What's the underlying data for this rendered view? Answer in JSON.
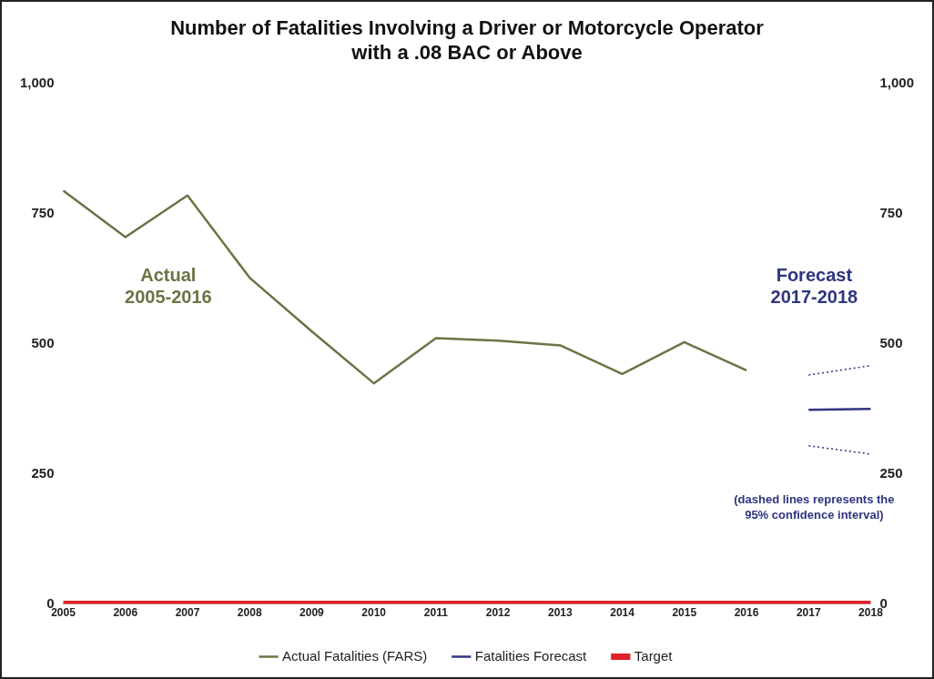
{
  "chart_data": {
    "type": "line",
    "title": "Number of Fatalities Involving a Driver or Motorcycle Operator\nwith a .08 BAC or Above",
    "categories": [
      "2005",
      "2006",
      "2007",
      "2008",
      "2009",
      "2010",
      "2011",
      "2012",
      "2013",
      "2014",
      "2015",
      "2016",
      "2017",
      "2018"
    ],
    "series": [
      {
        "name": "Actual Fatalities (FARS)",
        "color": "#6b7445",
        "values": [
          794,
          705,
          785,
          627,
          524,
          424,
          511,
          506,
          497,
          442,
          503,
          449,
          null,
          null
        ]
      },
      {
        "name": "Fatalities Forecast",
        "color": "#2e3580",
        "values": [
          null,
          null,
          null,
          null,
          null,
          null,
          null,
          null,
          null,
          null,
          null,
          null,
          373,
          375
        ]
      },
      {
        "color": "#2e3580",
        "line_style": "dotted",
        "values": [
          null,
          null,
          null,
          null,
          null,
          null,
          null,
          null,
          null,
          null,
          null,
          null,
          440,
          458
        ]
      },
      {
        "color": "#2e3580",
        "line_style": "dotted",
        "values": [
          null,
          null,
          null,
          null,
          null,
          null,
          null,
          null,
          null,
          null,
          null,
          null,
          304,
          288
        ]
      },
      {
        "name": "Target",
        "color": "#e0202a",
        "values": [
          0,
          0,
          0,
          0,
          0,
          0,
          0,
          0,
          0,
          0,
          0,
          0,
          0,
          0
        ]
      }
    ],
    "ylim": [
      0,
      1000
    ],
    "yticks": [
      0,
      250,
      500,
      750,
      {
        "value": 1000,
        "label": "1,000"
      }
    ],
    "y2lim": [
      0,
      1000
    ],
    "y2ticks": [
      0,
      250,
      500,
      750,
      {
        "value": 1000,
        "label": "1,000"
      }
    ],
    "annotations": [
      "Actual\n2005-2016",
      "Forecast\n2017-2018",
      "(dashed lines represents the\n95% confidence interval)"
    ],
    "grid": false,
    "legend": "bottom",
    "marker": "none",
    "line_style": "solid"
  }
}
